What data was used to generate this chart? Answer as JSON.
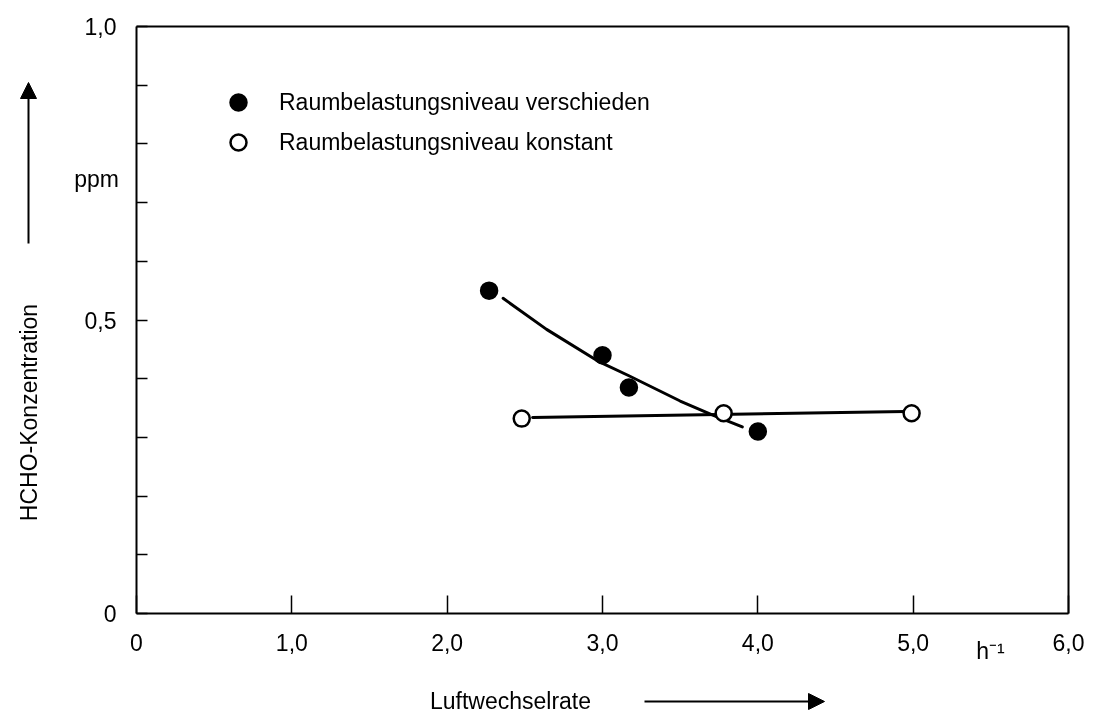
{
  "chart_data": {
    "type": "scatter",
    "xlabel": "Luftwechselrate",
    "ylabel": "HCHO-Konzentration",
    "annotations": [
      "ppm",
      "h⁻¹"
    ],
    "xlim": [
      0,
      6
    ],
    "ylim": [
      0,
      1
    ],
    "xticks": [
      0,
      {
        "value": 1,
        "label": "1,0"
      },
      {
        "value": 2,
        "label": "2,0"
      },
      {
        "value": 3,
        "label": "3,0"
      },
      {
        "value": 4,
        "label": "4,0"
      },
      {
        "value": 5,
        "label": "5,0"
      },
      {
        "value": 6,
        "label": "6,0"
      }
    ],
    "yticks": [
      0,
      {
        "value": 0.1,
        "label": null
      },
      {
        "value": 0.2,
        "label": null
      },
      {
        "value": 0.3,
        "label": null
      },
      {
        "value": 0.4,
        "label": null
      },
      {
        "value": 0.5,
        "label": "0,5"
      },
      {
        "value": 0.6,
        "label": null
      },
      {
        "value": 0.7,
        "label": null
      },
      {
        "value": 0.8,
        "label": null
      },
      {
        "value": 0.9,
        "label": null
      },
      {
        "value": 1,
        "label": "1,0"
      }
    ],
    "legend": "top left",
    "marker": "circle",
    "series": [
      {
        "name": "Raumbelastungsniveau verschieden",
        "color": "#000000",
        "x": [
          2.27,
          3.0,
          3.17,
          4.0
        ],
        "values": [
          0.55,
          0.44,
          0.385,
          0.31
        ]
      },
      {
        "name": "Raumbelastungsniveau konstant",
        "color": "#ffffff",
        "x": [
          2.48,
          3.78,
          4.99
        ],
        "values": [
          0.332,
          0.341,
          0.341
        ]
      },
      {
        "type": "line",
        "marker": "none",
        "color": "#000000",
        "x": [
          2.36,
          2.64,
          2.97,
          3.17,
          3.5,
          3.71,
          3.9
        ],
        "values": [
          0.537,
          0.484,
          0.43,
          0.405,
          0.362,
          0.338,
          0.318
        ]
      },
      {
        "type": "line",
        "marker": "none",
        "color": "#000000",
        "x": [
          2.55,
          4.95
        ],
        "values": [
          0.334,
          0.344
        ]
      }
    ]
  }
}
